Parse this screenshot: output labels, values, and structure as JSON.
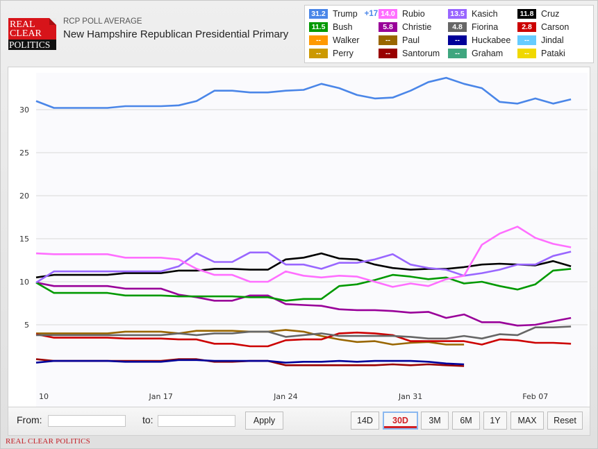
{
  "header": {
    "logo_lines": [
      "REAL",
      "CLEAR",
      "POLITICS"
    ],
    "subtitle": "RCP POLL AVERAGE",
    "title": "New Hampshire Republican Presidential Primary"
  },
  "legend": [
    {
      "name": "Trump",
      "value": "31.2",
      "change": "+17.2",
      "color": "#4a86e8"
    },
    {
      "name": "Rubio",
      "value": "14.0",
      "change": "",
      "color": "#ff6eff"
    },
    {
      "name": "Kasich",
      "value": "13.5",
      "change": "",
      "color": "#9966ff"
    },
    {
      "name": "Cruz",
      "value": "11.8",
      "change": "",
      "color": "#000000"
    },
    {
      "name": "Bush",
      "value": "11.5",
      "change": "",
      "color": "#009900"
    },
    {
      "name": "Christie",
      "value": "5.8",
      "change": "",
      "color": "#990099"
    },
    {
      "name": "Fiorina",
      "value": "4.8",
      "change": "",
      "color": "#666666"
    },
    {
      "name": "Carson",
      "value": "2.8",
      "change": "",
      "color": "#cc0000"
    },
    {
      "name": "Walker",
      "value": "--",
      "change": "",
      "color": "#ff9900"
    },
    {
      "name": "Paul",
      "value": "--",
      "change": "",
      "color": "#996600"
    },
    {
      "name": "Huckabee",
      "value": "--",
      "change": "",
      "color": "#000099"
    },
    {
      "name": "Jindal",
      "value": "--",
      "change": "",
      "color": "#66ccff"
    },
    {
      "name": "Perry",
      "value": "--",
      "change": "",
      "color": "#cc9900"
    },
    {
      "name": "Santorum",
      "value": "--",
      "change": "",
      "color": "#990000"
    },
    {
      "name": "Graham",
      "value": "--",
      "change": "",
      "color": "#3fa67f"
    },
    {
      "name": "Pataki",
      "value": "--",
      "change": "",
      "color": "#f0d800"
    }
  ],
  "chart_data": {
    "type": "line",
    "title": "New Hampshire Republican Presidential Primary",
    "xlabel": "",
    "ylabel": "",
    "ylim": [
      0,
      34
    ],
    "yticks": [
      5,
      10,
      15,
      20,
      25,
      30
    ],
    "x_start": "Jan 10",
    "x_end": "Feb 09",
    "xtick_labels": [
      {
        "label": "10",
        "day_index": 0
      },
      {
        "label": "Jan 17",
        "day_index": 7
      },
      {
        "label": "Jan 24",
        "day_index": 14
      },
      {
        "label": "Jan 31",
        "day_index": 21
      },
      {
        "label": "Feb 07",
        "day_index": 28
      }
    ],
    "grid": true,
    "legend_position": "top-right",
    "series": [
      {
        "name": "Trump",
        "color": "#4a86e8",
        "values": [
          31.0,
          30.2,
          30.2,
          30.2,
          30.2,
          30.4,
          30.4,
          30.4,
          30.5,
          31.0,
          32.2,
          32.2,
          32.0,
          32.0,
          32.2,
          32.3,
          33.0,
          32.5,
          31.7,
          31.3,
          31.4,
          32.2,
          33.2,
          33.7,
          33.0,
          32.5,
          30.9,
          30.7,
          31.3,
          30.7,
          31.2
        ]
      },
      {
        "name": "Rubio",
        "color": "#ff6eff",
        "values": [
          13.3,
          13.2,
          13.2,
          13.2,
          13.2,
          12.8,
          12.8,
          12.8,
          12.6,
          11.5,
          10.8,
          10.8,
          10.0,
          10.0,
          11.2,
          10.7,
          10.5,
          10.7,
          10.6,
          10.0,
          9.4,
          9.8,
          9.5,
          10.3,
          10.7,
          14.3,
          15.6,
          16.4,
          15.1,
          14.4,
          14.0
        ]
      },
      {
        "name": "Kasich",
        "color": "#9966ff",
        "values": [
          9.9,
          11.2,
          11.2,
          11.2,
          11.2,
          11.2,
          11.2,
          11.2,
          11.8,
          13.3,
          12.3,
          12.3,
          13.4,
          13.4,
          12.0,
          12.0,
          11.5,
          12.2,
          12.2,
          12.6,
          13.2,
          12.0,
          11.6,
          11.4,
          10.7,
          11.0,
          11.4,
          12.0,
          12.0,
          13.0,
          13.5
        ]
      },
      {
        "name": "Cruz",
        "color": "#000000",
        "values": [
          10.5,
          10.8,
          10.8,
          10.8,
          10.8,
          11.0,
          11.0,
          11.0,
          11.3,
          11.3,
          11.5,
          11.5,
          11.4,
          11.4,
          12.6,
          12.8,
          13.3,
          12.7,
          12.6,
          12.0,
          11.6,
          11.4,
          11.5,
          11.5,
          11.7,
          12.0,
          12.1,
          12.0,
          11.9,
          12.4,
          11.8
        ]
      },
      {
        "name": "Bush",
        "color": "#009900",
        "values": [
          9.9,
          8.7,
          8.7,
          8.7,
          8.7,
          8.4,
          8.4,
          8.4,
          8.3,
          8.3,
          8.3,
          8.3,
          8.2,
          8.2,
          7.8,
          8.0,
          8.0,
          9.5,
          9.7,
          10.2,
          10.8,
          10.6,
          10.3,
          10.5,
          9.8,
          10.0,
          9.5,
          9.1,
          9.7,
          11.3,
          11.5
        ]
      },
      {
        "name": "Christie",
        "color": "#990099",
        "values": [
          9.9,
          9.5,
          9.5,
          9.5,
          9.5,
          9.2,
          9.2,
          9.2,
          8.5,
          8.2,
          7.8,
          7.8,
          8.4,
          8.4,
          7.4,
          7.3,
          7.2,
          6.8,
          6.7,
          6.7,
          6.6,
          6.4,
          6.5,
          5.8,
          6.2,
          5.3,
          5.3,
          4.9,
          5.0,
          5.4,
          5.8
        ]
      },
      {
        "name": "Fiorina",
        "color": "#666666",
        "values": [
          3.8,
          3.8,
          3.8,
          3.8,
          3.8,
          3.8,
          3.8,
          3.8,
          4.0,
          3.8,
          4.0,
          4.0,
          4.2,
          4.2,
          3.6,
          3.8,
          4.0,
          3.7,
          3.7,
          3.7,
          3.7,
          3.6,
          3.4,
          3.4,
          3.7,
          3.4,
          3.9,
          3.8,
          4.7,
          4.7,
          4.8
        ]
      },
      {
        "name": "Carson",
        "color": "#cc0000",
        "values": [
          3.9,
          3.5,
          3.5,
          3.5,
          3.5,
          3.4,
          3.4,
          3.4,
          3.3,
          3.3,
          2.8,
          2.8,
          2.5,
          2.5,
          3.2,
          3.3,
          3.3,
          4.0,
          4.1,
          4.0,
          3.8,
          3.1,
          3.1,
          3.1,
          3.1,
          2.7,
          3.3,
          3.2,
          2.9,
          2.9,
          2.8
        ]
      },
      {
        "name": "Paul",
        "color": "#996600",
        "values": [
          4.0,
          4.0,
          4.0,
          4.0,
          4.0,
          4.2,
          4.2,
          4.2,
          4.0,
          4.3,
          4.3,
          4.3,
          4.2,
          4.2,
          4.4,
          4.2,
          3.7,
          3.3,
          3.0,
          3.1,
          2.7,
          2.9,
          3.0,
          2.7,
          2.7,
          null,
          null,
          null,
          null,
          null,
          null
        ]
      },
      {
        "name": "Huckabee",
        "color": "#000099",
        "values": [
          0.6,
          0.8,
          0.8,
          0.8,
          0.8,
          0.7,
          0.7,
          0.7,
          0.9,
          0.9,
          0.8,
          0.8,
          0.8,
          0.8,
          0.6,
          0.7,
          0.7,
          0.8,
          0.7,
          0.8,
          0.8,
          0.8,
          0.7,
          0.5,
          0.4,
          null,
          null,
          null,
          null,
          null,
          null
        ]
      },
      {
        "name": "Santorum",
        "color": "#990000",
        "values": [
          1.0,
          0.8,
          0.8,
          0.8,
          0.8,
          0.8,
          0.8,
          0.8,
          1.0,
          1.0,
          0.7,
          0.7,
          0.8,
          0.8,
          0.3,
          0.3,
          0.3,
          0.3,
          0.3,
          0.3,
          0.4,
          0.3,
          0.4,
          0.3,
          0.2,
          null,
          null,
          null,
          null,
          null,
          null
        ]
      }
    ]
  },
  "controls": {
    "from_label": "From:",
    "to_label": "to:",
    "from_value": "",
    "to_value": "",
    "apply_label": "Apply",
    "ranges": [
      "14D",
      "30D",
      "3M",
      "6M",
      "1Y",
      "MAX"
    ],
    "active_range": "30D",
    "reset_label": "Reset"
  },
  "footer": {
    "brand": "REAL CLEAR POLITICS"
  }
}
